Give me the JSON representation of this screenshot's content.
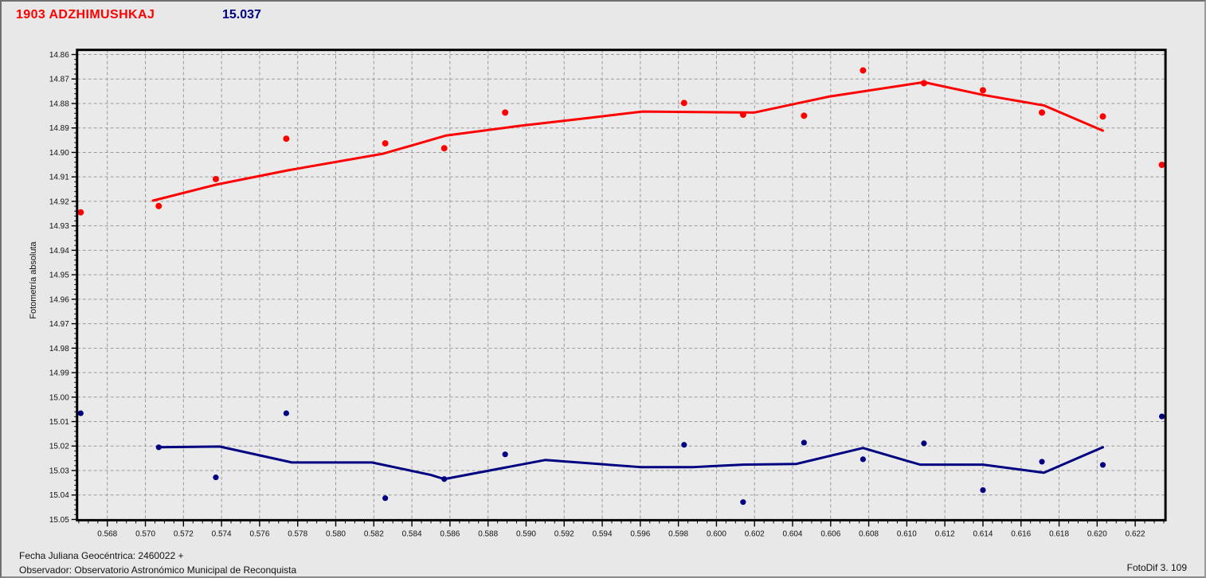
{
  "header": {
    "object_title": "1903 ADZHIMUSHKAJ",
    "magnitude_value": "15.037",
    "title_color": "#ff0000",
    "value_color": "#000080"
  },
  "footer": {
    "julian_date": "Fecha Juliana Geocéntrica: 2460022 +",
    "observer": "Observador: Observatorio Astronómico Municipal de Reconquista",
    "app_credit": "FotoDif 3. 109"
  },
  "chart_data": {
    "type": "scatter",
    "title": "",
    "xlabel": "",
    "ylabel": "Fotometría absoluta",
    "grid": "dashed",
    "legend": "none",
    "y_inverted": true,
    "axis_colors": {
      "frame": "#000000",
      "grid": "#999999",
      "text": "#111111"
    },
    "x_axis": {
      "min": 0.56641,
      "max": 0.62359,
      "tick_step": 0.002,
      "minor_step": 0.0005,
      "decimals": 3,
      "tick_labels": [
        "0.568",
        "0.570",
        "0.572",
        "0.574",
        "0.576",
        "0.578",
        "0.580",
        "0.582",
        "0.584",
        "0.586",
        "0.588",
        "0.590",
        "0.592",
        "0.594",
        "0.596",
        "0.598",
        "0.600",
        "0.602",
        "0.604",
        "0.606",
        "0.608",
        "0.610",
        "0.612",
        "0.614",
        "0.616",
        "0.618",
        "0.620",
        "0.622"
      ]
    },
    "y_axis": {
      "top": 14.8581,
      "bottom": 15.0503,
      "tick_step": 0.01,
      "minor_step": 0.002,
      "decimals": 2,
      "tick_labels": [
        "14.86",
        "14.87",
        "14.88",
        "14.89",
        "14.90",
        "14.91",
        "14.92",
        "14.93",
        "14.94",
        "14.95",
        "14.96",
        "14.97",
        "14.98",
        "14.99",
        "15.00",
        "15.01",
        "15.02",
        "15.03",
        "15.04",
        "15.05"
      ]
    },
    "series": [
      {
        "name": "photometry-points",
        "kind": "points",
        "color": "#ff0000",
        "marker": "circle",
        "marker_radius": 4,
        "points": [
          [
            0.5666,
            14.9245
          ],
          [
            0.5707,
            14.9219
          ],
          [
            0.5737,
            14.9109
          ],
          [
            0.5774,
            14.8944
          ],
          [
            0.5826,
            14.8963
          ],
          [
            0.5857,
            14.8983
          ],
          [
            0.5889,
            14.8837
          ],
          [
            0.5983,
            14.8798
          ],
          [
            0.6014,
            14.8846
          ],
          [
            0.6046,
            14.885
          ],
          [
            0.6077,
            14.8665
          ],
          [
            0.6109,
            14.8717
          ],
          [
            0.614,
            14.8746
          ],
          [
            0.6171,
            14.8837
          ],
          [
            0.6203,
            14.8853
          ],
          [
            0.6234,
            14.9051
          ]
        ]
      },
      {
        "name": "photometry-fit-curve",
        "kind": "line",
        "color": "#ff0000",
        "line_width": 3,
        "points": [
          [
            0.5704,
            14.9197
          ],
          [
            0.5737,
            14.9132
          ],
          [
            0.5775,
            14.9073
          ],
          [
            0.5825,
            14.9005
          ],
          [
            0.5858,
            14.8931
          ],
          [
            0.5896,
            14.8892
          ],
          [
            0.5933,
            14.8859
          ],
          [
            0.5961,
            14.8833
          ],
          [
            0.602,
            14.8837
          ],
          [
            0.6059,
            14.8772
          ],
          [
            0.6109,
            14.8713
          ],
          [
            0.614,
            14.8765
          ],
          [
            0.6172,
            14.8808
          ],
          [
            0.6203,
            14.8911
          ]
        ]
      },
      {
        "name": "comparison-points",
        "kind": "points",
        "color": "#000080",
        "marker": "circle",
        "marker_radius": 3.6,
        "points": [
          [
            0.5666,
            15.0066
          ],
          [
            0.5707,
            15.0205
          ],
          [
            0.5737,
            15.0328
          ],
          [
            0.5774,
            15.0066
          ],
          [
            0.5826,
            15.0413
          ],
          [
            0.5857,
            15.0335
          ],
          [
            0.5889,
            15.0234
          ],
          [
            0.5983,
            15.0195
          ],
          [
            0.6014,
            15.0429
          ],
          [
            0.6046,
            15.0186
          ],
          [
            0.6077,
            15.0254
          ],
          [
            0.6109,
            15.0189
          ],
          [
            0.614,
            15.038
          ],
          [
            0.6171,
            15.0264
          ],
          [
            0.6203,
            15.0277
          ],
          [
            0.6234,
            15.0079
          ]
        ]
      },
      {
        "name": "comparison-fit-curve",
        "kind": "line",
        "color": "#000080",
        "line_width": 3,
        "points": [
          [
            0.5707,
            15.0205
          ],
          [
            0.5739,
            15.0202
          ],
          [
            0.5777,
            15.0267
          ],
          [
            0.5819,
            15.0267
          ],
          [
            0.585,
            15.0318
          ],
          [
            0.5857,
            15.0335
          ],
          [
            0.591,
            15.0257
          ],
          [
            0.596,
            15.0286
          ],
          [
            0.5988,
            15.0286
          ],
          [
            0.6014,
            15.0276
          ],
          [
            0.6042,
            15.0273
          ],
          [
            0.6077,
            15.0208
          ],
          [
            0.6107,
            15.0276
          ],
          [
            0.614,
            15.0276
          ],
          [
            0.6172,
            15.0309
          ],
          [
            0.6203,
            15.0205
          ]
        ]
      }
    ]
  }
}
